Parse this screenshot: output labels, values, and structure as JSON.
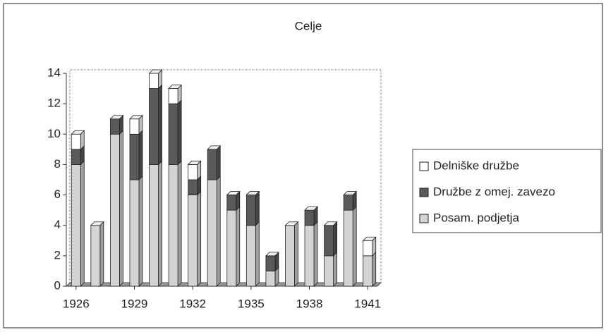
{
  "chart_data": {
    "type": "bar",
    "stacked": true,
    "title": "Celje",
    "categories": [
      "1926",
      null,
      null,
      "1929",
      null,
      null,
      "1932",
      null,
      null,
      "1935",
      null,
      null,
      "1938",
      null,
      null,
      "1941"
    ],
    "series": [
      {
        "name": "Posam. podjetja",
        "color": "#d4d4d4",
        "values": [
          8,
          4,
          10,
          7,
          8,
          8,
          6,
          7,
          5,
          4,
          1,
          4,
          4,
          2,
          5,
          2
        ]
      },
      {
        "name": "Družbe z omej. zavezo",
        "color": "#5a5a5a",
        "values": [
          1,
          0,
          1,
          3,
          5,
          4,
          1,
          2,
          1,
          2,
          1,
          0,
          1,
          2,
          1,
          0
        ]
      },
      {
        "name": "Delniške družbe",
        "color": "#ffffff",
        "values": [
          1,
          0,
          0,
          1,
          1,
          1,
          1,
          0,
          0,
          0,
          0,
          0,
          0,
          0,
          0,
          1
        ]
      }
    ],
    "ylim": [
      0,
      14
    ],
    "yticks": [
      0,
      2,
      4,
      6,
      8,
      10,
      12,
      14
    ],
    "legend": "right"
  }
}
